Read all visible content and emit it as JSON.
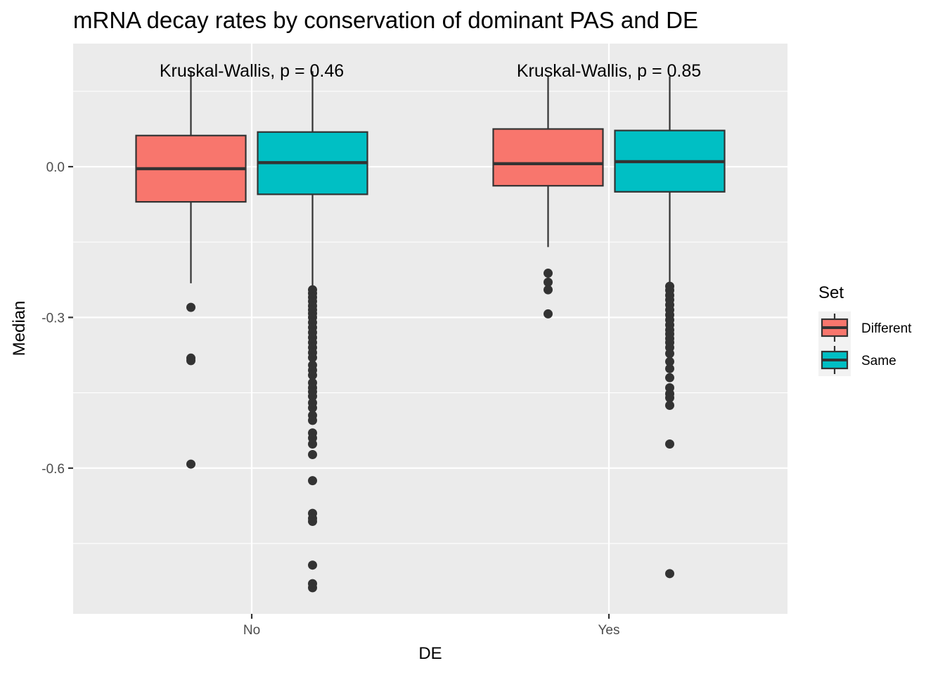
{
  "chart_data": {
    "type": "boxplot",
    "title": "mRNA decay rates by conservation of dominant PAS and DE",
    "xlabel": "DE",
    "ylabel": "Median",
    "categories": [
      "No",
      "Yes"
    ],
    "y_ticks": [
      0.0,
      -0.3,
      -0.6
    ],
    "y_tick_labels": [
      "0.0",
      "-0.3",
      "-0.6"
    ],
    "ylim": [
      -0.89,
      0.245
    ],
    "grid": true,
    "legend": {
      "title": "Set",
      "position": "right",
      "entries": [
        {
          "name": "Different",
          "color": "#F8766D"
        },
        {
          "name": "Same",
          "color": "#00BFC4"
        }
      ]
    },
    "annotations": [
      {
        "category": "No",
        "text": "Kruskal-Wallis, p = 0.46"
      },
      {
        "category": "Yes",
        "text": "Kruskal-Wallis, p = 0.85"
      }
    ],
    "series": [
      {
        "name": "Different",
        "color": "#F8766D",
        "boxes": [
          {
            "category": "No",
            "min": -0.232,
            "q1": -0.07,
            "median": -0.004,
            "q3": 0.062,
            "max": 0.19,
            "outliers": [
              -0.28,
              -0.381,
              -0.386,
              -0.592
            ]
          },
          {
            "category": "Yes",
            "min": -0.16,
            "q1": -0.038,
            "median": 0.006,
            "q3": 0.075,
            "max": 0.18,
            "outliers": [
              -0.212,
              -0.23,
              -0.245,
              -0.293
            ]
          }
        ]
      },
      {
        "name": "Same",
        "color": "#00BFC4",
        "boxes": [
          {
            "category": "No",
            "min": -0.245,
            "q1": -0.055,
            "median": 0.008,
            "q3": 0.069,
            "max": 0.19,
            "outliers": [
              -0.245,
              -0.252,
              -0.26,
              -0.268,
              -0.277,
              -0.285,
              -0.292,
              -0.3,
              -0.31,
              -0.32,
              -0.33,
              -0.34,
              -0.35,
              -0.36,
              -0.37,
              -0.38,
              -0.395,
              -0.405,
              -0.415,
              -0.43,
              -0.44,
              -0.448,
              -0.457,
              -0.47,
              -0.48,
              -0.495,
              -0.505,
              -0.53,
              -0.54,
              -0.552,
              -0.573,
              -0.625,
              -0.69,
              -0.7,
              -0.706,
              -0.793,
              -0.83,
              -0.838
            ]
          },
          {
            "category": "Yes",
            "min": -0.24,
            "q1": -0.05,
            "median": 0.01,
            "q3": 0.072,
            "max": 0.18,
            "outliers": [
              -0.238,
              -0.246,
              -0.256,
              -0.265,
              -0.275,
              -0.285,
              -0.295,
              -0.305,
              -0.315,
              -0.325,
              -0.333,
              -0.342,
              -0.35,
              -0.36,
              -0.372,
              -0.388,
              -0.402,
              -0.42,
              -0.44,
              -0.452,
              -0.46,
              -0.475,
              -0.552,
              -0.81
            ]
          }
        ]
      }
    ]
  }
}
